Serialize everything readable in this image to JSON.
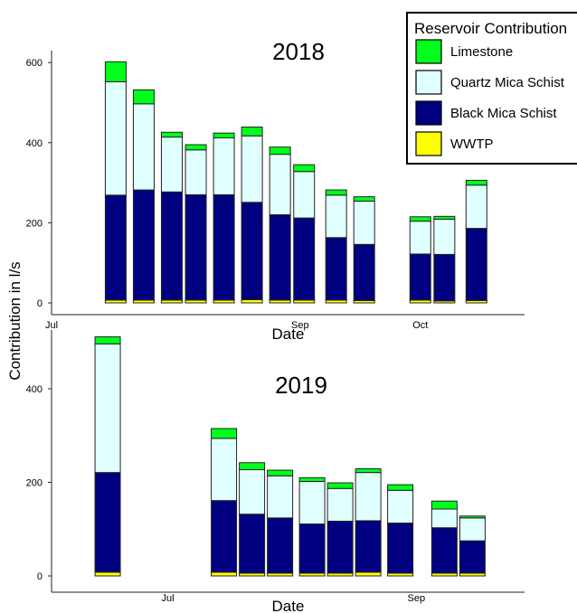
{
  "colors": {
    "Limestone": "#00ff1a",
    "Quartz Mica Schist": "#e0ffff",
    "Black Mica Schist": "#000080",
    "WWTP": "#ffff00"
  },
  "legend": {
    "title": "Reservoir Contribution",
    "entries": [
      "Limestone",
      "Quartz Mica Schist",
      "Black Mica Schist",
      "WWTP"
    ]
  },
  "ylabel": "Contribution in l/s",
  "chart_data": [
    {
      "type": "bar",
      "stacked": true,
      "title": "2018",
      "xlabel": "Date",
      "ylabel": "Contribution in l/s",
      "ylim": [
        -10,
        630
      ],
      "yticks": [
        0,
        200,
        400,
        600
      ],
      "xlim": [
        "2018-07-01",
        "2018-10-27"
      ],
      "xticks": [
        {
          "date": "2018-07-01",
          "label": "Jul"
        },
        {
          "date": "2018-09-01",
          "label": "Sep"
        },
        {
          "date": "2018-10-01",
          "label": "Oct"
        }
      ],
      "x": [
        "2018-07-17",
        "2018-07-24",
        "2018-07-31",
        "2018-08-06",
        "2018-08-13",
        "2018-08-20",
        "2018-08-27",
        "2018-09-02",
        "2018-09-10",
        "2018-09-17",
        "2018-10-01",
        "2018-10-07",
        "2018-10-15"
      ],
      "series": [
        {
          "name": "WWTP",
          "values": [
            7,
            7,
            7,
            7,
            7,
            8,
            7,
            7,
            7,
            6,
            7,
            5,
            6
          ]
        },
        {
          "name": "Black Mica Schist",
          "values": [
            262,
            275,
            270,
            263,
            263,
            243,
            213,
            205,
            156,
            140,
            115,
            116,
            180
          ]
        },
        {
          "name": "Quartz Mica Schist",
          "values": [
            283,
            215,
            137,
            112,
            142,
            166,
            151,
            116,
            106,
            108,
            82,
            88,
            108
          ]
        },
        {
          "name": "Limestone",
          "values": [
            50,
            35,
            12,
            13,
            12,
            22,
            18,
            17,
            13,
            11,
            11,
            7,
            12
          ]
        }
      ]
    },
    {
      "type": "bar",
      "stacked": true,
      "title": "2019",
      "xlabel": "Date",
      "ylabel": "",
      "ylim": [
        -10,
        510
      ],
      "yticks": [
        0,
        200,
        400
      ],
      "xlim": [
        "2019-06-02",
        "2019-09-28"
      ],
      "xticks": [
        {
          "date": "2019-07-01",
          "label": "Jul"
        },
        {
          "date": "2019-09-01",
          "label": "Sep"
        }
      ],
      "x": [
        "2019-06-16",
        "2019-07-15",
        "2019-07-22",
        "2019-07-29",
        "2019-08-06",
        "2019-08-13",
        "2019-08-20",
        "2019-08-28",
        "2019-09-08",
        "2019-09-15"
      ],
      "series": [
        {
          "name": "WWTP",
          "values": [
            8,
            8,
            6,
            6,
            6,
            6,
            8,
            6,
            6,
            6
          ]
        },
        {
          "name": "Black Mica Schist",
          "values": [
            213,
            153,
            126,
            118,
            105,
            111,
            110,
            107,
            97,
            69
          ]
        },
        {
          "name": "Quartz Mica Schist",
          "values": [
            275,
            133,
            95,
            90,
            91,
            70,
            103,
            70,
            40,
            49
          ]
        },
        {
          "name": "Limestone",
          "values": [
            15,
            21,
            15,
            12,
            8,
            12,
            8,
            12,
            17,
            4
          ]
        }
      ]
    }
  ]
}
